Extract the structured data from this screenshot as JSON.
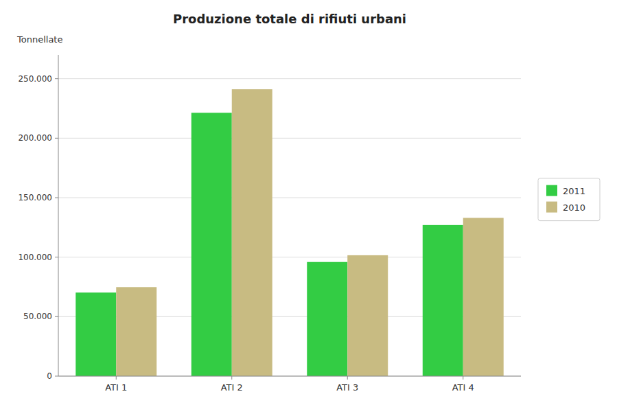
{
  "chart_data": {
    "type": "bar",
    "title": "Produzione totale di rifiuti urbani",
    "y_label": "Tonnellate",
    "categories": [
      "ATI 1",
      "ATI 2",
      "ATI 3",
      "ATI 4"
    ],
    "series": [
      {
        "name": "2011",
        "color": "#33cc44",
        "values": [
          70222,
          221335,
          95926,
          127000
        ]
      },
      {
        "name": "2010",
        "color": "#c8bb82",
        "values": [
          74837,
          241110,
          101604,
          133000
        ]
      }
    ],
    "ylim": [
      0,
      270000
    ],
    "yticks": [
      0,
      {
        "value": 50000,
        "label": "50.000"
      },
      {
        "value": 100000,
        "label": "100.000"
      },
      {
        "value": 150000,
        "label": "150.000"
      },
      {
        "value": 200000,
        "label": "200.000"
      },
      {
        "value": 250000,
        "label": "250.000"
      }
    ],
    "grid": true,
    "legend": "right"
  }
}
